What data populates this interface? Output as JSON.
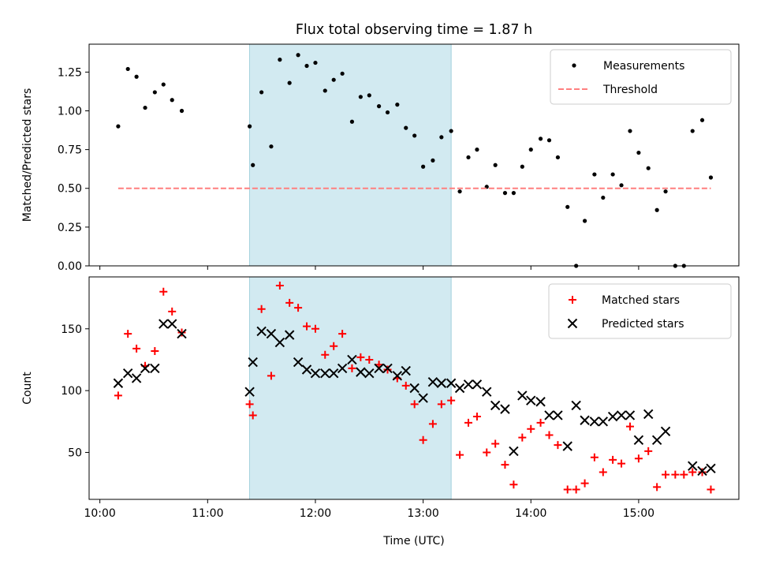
{
  "chart_data": {
    "title": "Flux total observing time = 1.87 h",
    "xlabel": "Time (UTC)",
    "x_unit": "hours since 10:00 UTC",
    "xlim": [
      -0.1,
      5.93
    ],
    "xticks": [
      {
        "value": 0,
        "label": "10:00"
      },
      {
        "value": 1,
        "label": "11:00"
      },
      {
        "value": 2,
        "label": "12:00"
      },
      {
        "value": 3,
        "label": "13:00"
      },
      {
        "value": 4,
        "label": "14:00"
      },
      {
        "value": 5,
        "label": "15:00"
      }
    ],
    "highlight_span": {
      "x0": 1.39,
      "x1": 3.26,
      "color": "#add8e6"
    },
    "panels": [
      {
        "type": "scatter",
        "ylabel": "Matched/Predicted stars",
        "ylim": [
          0,
          1.43
        ],
        "yticks": [
          "0.00",
          "0.25",
          "0.50",
          "0.75",
          "1.00",
          "1.25"
        ],
        "legend": {
          "position": "top-right"
        },
        "series": [
          {
            "name": "Measurements",
            "marker": "dot",
            "color": "#000000",
            "x": [
              0.17,
              0.26,
              0.34,
              0.42,
              0.51,
              0.59,
              0.67,
              0.76,
              1.39,
              1.42,
              1.5,
              1.59,
              1.67,
              1.76,
              1.84,
              1.92,
              2.0,
              2.09,
              2.17,
              2.25,
              2.34,
              2.42,
              2.5,
              2.59,
              2.67,
              2.76,
              2.84,
              2.92,
              3.0,
              3.09,
              3.17,
              3.26,
              3.34,
              3.42,
              3.5,
              3.59,
              3.67,
              3.76,
              3.84,
              3.92,
              4.0,
              4.09,
              4.17,
              4.25,
              4.34,
              4.42,
              4.5,
              4.59,
              4.67,
              4.76,
              4.84,
              4.92,
              5.0,
              5.09,
              5.17,
              5.25,
              5.34,
              5.42,
              5.5,
              5.59,
              5.67
            ],
            "y": [
              0.9,
              1.27,
              1.22,
              1.02,
              1.12,
              1.17,
              1.07,
              1.0,
              0.9,
              0.65,
              1.12,
              0.77,
              1.33,
              1.18,
              1.36,
              1.29,
              1.31,
              1.13,
              1.2,
              1.24,
              0.93,
              1.09,
              1.1,
              1.03,
              0.99,
              1.04,
              0.89,
              0.84,
              0.64,
              0.68,
              0.83,
              0.87,
              0.48,
              0.7,
              0.75,
              0.51,
              0.65,
              0.47,
              0.47,
              0.64,
              0.75,
              0.82,
              0.81,
              0.7,
              0.38,
              0.0,
              0.29,
              0.59,
              0.44,
              0.59,
              0.52,
              0.87,
              0.73,
              0.63,
              0.36,
              0.48,
              0.0,
              0.0,
              0.87,
              0.94,
              0.57
            ]
          },
          {
            "name": "Threshold",
            "style": "dashed",
            "color": "#ff7f7f",
            "x": [
              0.17,
              5.67
            ],
            "y": [
              0.5,
              0.5
            ]
          }
        ]
      },
      {
        "type": "scatter",
        "ylabel": "Count",
        "ylim": [
          12,
          192
        ],
        "yticks": [
          "50",
          "100",
          "150"
        ],
        "legend": {
          "position": "top-right"
        },
        "series": [
          {
            "name": "Matched stars",
            "marker": "plus",
            "color": "#ff0000",
            "x": [
              0.17,
              0.26,
              0.34,
              0.42,
              0.51,
              0.59,
              0.67,
              0.76,
              1.39,
              1.42,
              1.5,
              1.59,
              1.67,
              1.76,
              1.84,
              1.92,
              2.0,
              2.09,
              2.17,
              2.25,
              2.34,
              2.42,
              2.5,
              2.59,
              2.67,
              2.76,
              2.84,
              2.92,
              3.0,
              3.09,
              3.17,
              3.26,
              3.34,
              3.42,
              3.5,
              3.59,
              3.67,
              3.76,
              3.84,
              3.92,
              4.0,
              4.09,
              4.17,
              4.25,
              4.34,
              4.42,
              4.5,
              4.59,
              4.67,
              4.76,
              4.84,
              4.92,
              5.0,
              5.09,
              5.17,
              5.25,
              5.34,
              5.42,
              5.5,
              5.59,
              5.67
            ],
            "y": [
              96,
              146,
              134,
              120,
              132,
              180,
              164,
              147,
              89,
              80,
              166,
              112,
              185,
              171,
              167,
              152,
              150,
              129,
              136,
              146,
              118,
              127,
              125,
              121,
              117,
              110,
              104,
              89,
              60,
              73,
              89,
              92,
              48,
              74,
              79,
              50,
              57,
              40,
              24,
              62,
              69,
              74,
              64,
              56,
              20,
              20,
              25,
              46,
              34,
              44,
              41,
              71,
              45,
              51,
              22,
              32,
              32,
              32,
              34,
              34,
              20
            ]
          },
          {
            "name": "Predicted stars",
            "marker": "x",
            "color": "#000000",
            "x": [
              0.17,
              0.26,
              0.34,
              0.42,
              0.51,
              0.59,
              0.67,
              0.76,
              1.39,
              1.42,
              1.5,
              1.59,
              1.67,
              1.76,
              1.84,
              1.92,
              2.0,
              2.09,
              2.17,
              2.25,
              2.34,
              2.42,
              2.5,
              2.59,
              2.67,
              2.76,
              2.84,
              2.92,
              3.0,
              3.09,
              3.17,
              3.26,
              3.34,
              3.42,
              3.5,
              3.59,
              3.67,
              3.76,
              3.84,
              3.92,
              4.0,
              4.09,
              4.17,
              4.25,
              4.34,
              4.42,
              4.5,
              4.59,
              4.67,
              4.76,
              4.84,
              4.92,
              5.0,
              5.09,
              5.17,
              5.25,
              5.34,
              5.42,
              5.5,
              5.59,
              5.67
            ],
            "y": [
              106,
              114,
              110,
              118,
              118,
              154,
              154,
              146,
              99,
              123,
              148,
              146,
              139,
              145,
              123,
              117,
              114,
              114,
              114,
              118,
              125,
              115,
              114,
              118,
              118,
              112,
              116,
              102,
              94,
              107,
              106,
              106,
              102,
              105,
              105,
              99,
              88,
              85,
              51,
              96,
              92,
              91,
              80,
              80,
              55,
              88,
              76,
              75,
              75,
              79,
              80,
              80,
              60,
              81,
              60,
              67,
              null,
              null,
              39,
              35,
              37
            ]
          }
        ]
      }
    ]
  }
}
